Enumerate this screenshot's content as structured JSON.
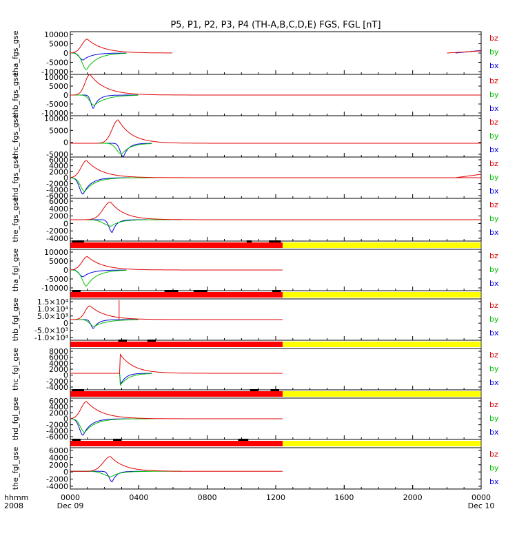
{
  "title": "P5, P1, P2, P3, P4 (TH-A,B,C,D,E) FGS, FGL [nT]",
  "xaxis": {
    "label_line1": "hhmm",
    "label_line2": "2008",
    "ticks": [
      "0000",
      "0400",
      "0800",
      "1200",
      "1600",
      "2000",
      "0000"
    ],
    "tick_hours": [
      0,
      4,
      8,
      12,
      16,
      20,
      24
    ],
    "date_labels": [
      {
        "hour": 0,
        "text": "Dec 09"
      },
      {
        "hour": 24,
        "text": "Dec 10"
      }
    ],
    "range_hours": [
      0,
      24
    ]
  },
  "legend_labels": [
    "bz",
    "by",
    "bx"
  ],
  "colors": {
    "bz": "#e00000",
    "by": "#00c000",
    "bx": "#0000e0",
    "mode_fast": "#ff0000",
    "mode_slow": "#ffff00",
    "purple": "#8000a0"
  },
  "chart_data": [
    {
      "type": "line",
      "ylabel": "tha_fgs_gse",
      "ylim": [
        -10000,
        10000
      ],
      "yticks": [
        "10000",
        "5000",
        "0",
        "-5000",
        "-10000"
      ],
      "series": [
        {
          "name": "bz",
          "peak": 6500,
          "t0": 0,
          "tp": 1.0,
          "tr": 0.45,
          "tf": 0.9,
          "tend": 6.0,
          "base": 0,
          "tail": [
            [
              22.0,
              24.0,
              0,
              1000
            ]
          ]
        },
        {
          "name": "by",
          "peak": -7800,
          "t0": 0.1,
          "tp": 0.95,
          "tr": 0.35,
          "tf": 0.6,
          "tend": 3.3,
          "base": 0
        },
        {
          "name": "bx",
          "peak": -3300,
          "t0": 0.3,
          "tp": 0.75,
          "tr": 0.3,
          "tf": 0.5,
          "tend": 3.3,
          "base": 0,
          "tail": [
            [
              22.5,
              24.0,
              0,
              1200
            ]
          ]
        }
      ]
    },
    {
      "type": "line",
      "ylabel": "thb_fgs_gse",
      "ylim": [
        -10000,
        10000
      ],
      "yticks": [
        "10000",
        "5000",
        "0",
        "-5000",
        "-10000"
      ],
      "series": [
        {
          "name": "bz",
          "peak": 10000,
          "t0": 0.2,
          "tp": 1.15,
          "tr": 0.4,
          "tf": 0.9,
          "tend": 24,
          "base": 0
        },
        {
          "name": "by",
          "peak": -5000,
          "t0": 0.5,
          "tp": 1.4,
          "tr": 0.35,
          "tf": 0.7,
          "tend": 4.0,
          "base": 0
        },
        {
          "name": "bx",
          "peak": -6500,
          "t0": 0.6,
          "tp": 1.35,
          "tr": 0.2,
          "tf": 0.3,
          "tend": 4.0,
          "base": 0
        }
      ]
    },
    {
      "type": "line",
      "ylabel": "thc_fgs_gse",
      "ylim": [
        -5000,
        10000
      ],
      "yticks": [
        "10000",
        "5000",
        "0",
        "-5000"
      ],
      "series": [
        {
          "name": "bz",
          "peak": 8500,
          "t0": 0,
          "tp": 2.8,
          "tr": 0.5,
          "tf": 0.8,
          "tend": 24,
          "base": 0
        },
        {
          "name": "by",
          "peak": -4000,
          "t0": 1.0,
          "tp": 3.0,
          "tr": 0.4,
          "tf": 0.5,
          "tend": 4.8,
          "base": 0
        },
        {
          "name": "bx",
          "peak": -5000,
          "t0": 1.5,
          "tp": 3.1,
          "tr": 0.25,
          "tf": 0.3,
          "tend": 4.8,
          "base": 0
        }
      ]
    },
    {
      "type": "line",
      "ylabel": "thd_fgs_gse",
      "ylim": [
        -6000,
        6000
      ],
      "yticks": [
        "6000",
        "4000",
        "2000",
        "0",
        "-2000",
        "-4000",
        "-6000"
      ],
      "series": [
        {
          "name": "bz",
          "peak": 5000,
          "t0": 0,
          "tp": 0.95,
          "tr": 0.45,
          "tf": 0.9,
          "tend": 24,
          "base": 0,
          "tail": [
            [
              22.5,
              24.0,
              0,
              1000
            ]
          ]
        },
        {
          "name": "by",
          "peak": -4000,
          "t0": 0,
          "tp": 0.85,
          "tr": 0.35,
          "tf": 0.6,
          "tend": 5.0,
          "base": 0,
          "tail": [
            [
              19.3,
              24.0,
              0,
              0
            ]
          ]
        },
        {
          "name": "bx",
          "peak": -4800,
          "t0": 0,
          "tp": 0.75,
          "tr": 0.3,
          "tf": 0.45,
          "tend": 3.5,
          "base": 0
        }
      ]
    },
    {
      "type": "line",
      "ylabel": "the_fgs_gse",
      "ylim": [
        -6000,
        6000
      ],
      "yticks": [
        "6000",
        "4000",
        "2000",
        "0",
        "-2000",
        "-4000"
      ],
      "series": [
        {
          "name": "bz",
          "peak": 5000,
          "t0": 0,
          "tp": 2.35,
          "tr": 0.6,
          "tf": 0.8,
          "tend": 24,
          "base": 0
        },
        {
          "name": "by",
          "peak": -1800,
          "t0": 0,
          "tp": 2.4,
          "tr": 0.6,
          "tf": 0.5,
          "tend": 6.5,
          "base": 0,
          "tail": [
            [
              20.2,
              24.0,
              0,
              0
            ]
          ]
        },
        {
          "name": "bx",
          "peak": -3600,
          "t0": 0,
          "tp": 2.45,
          "tr": 0.25,
          "tf": 0.25,
          "tend": 4.5,
          "base": 0
        }
      ]
    },
    {
      "type": "line",
      "ylabel": "tha_fgl_gse",
      "ylim": [
        -10000,
        10000
      ],
      "yticks": [
        "10000",
        "5000",
        "0",
        "-5000",
        "-10000"
      ],
      "series": [
        {
          "name": "bz",
          "peak": 6500,
          "t0": 0,
          "tp": 1.0,
          "tr": 0.45,
          "tf": 0.9,
          "tend": 12.4,
          "base": 0
        },
        {
          "name": "by",
          "peak": -7800,
          "t0": 0.1,
          "tp": 0.95,
          "tr": 0.35,
          "tf": 0.6,
          "tend": 3.3,
          "base": 0
        },
        {
          "name": "bx",
          "peak": -3300,
          "t0": 0.3,
          "tp": 0.75,
          "tr": 0.3,
          "tf": 0.5,
          "tend": 3.3,
          "base": 0
        }
      ]
    },
    {
      "type": "line",
      "ylabel": "thb_fgl_gse",
      "ylim": [
        -15000,
        15000
      ],
      "yticks": [
        "1.5×10⁴",
        "1.0×10⁴",
        "5.0×10³",
        "0",
        "-5.0×10³",
        "-1.0×10⁴"
      ],
      "series": [
        {
          "name": "bz",
          "peak": 10000,
          "t0": 0.2,
          "tp": 1.15,
          "tr": 0.4,
          "tf": 0.9,
          "tend": 12.4,
          "base": 0
        },
        {
          "name": "by",
          "peak": -5000,
          "t0": 0.5,
          "tp": 1.4,
          "tr": 0.35,
          "tf": 0.7,
          "tend": 4.0,
          "base": 0
        },
        {
          "name": "bx",
          "peak": -6500,
          "t0": 0.6,
          "tp": 1.35,
          "tr": 0.2,
          "tf": 0.3,
          "tend": 4.0,
          "base": 0
        }
      ]
    },
    {
      "type": "line",
      "ylabel": "thc_fgl_gse",
      "ylim": [
        -6000,
        9000
      ],
      "yticks": [
        "8000",
        "6000",
        "4000",
        "2000",
        "0",
        "-2000",
        "-4000"
      ],
      "series": [
        {
          "name": "bz",
          "peak": 7000,
          "t0": 2.9,
          "tp": 2.9,
          "tr": 0.01,
          "tf": 0.8,
          "tend": 12.4,
          "base": 0
        },
        {
          "name": "by",
          "peak": -4500,
          "t0": 2.9,
          "tp": 2.9,
          "tr": 0.01,
          "tf": 0.5,
          "tend": 4.8,
          "base": 0
        },
        {
          "name": "bx",
          "peak": -4000,
          "t0": 2.9,
          "tp": 2.95,
          "tr": 0.05,
          "tf": 0.3,
          "tend": 4.8,
          "base": 0
        }
      ]
    },
    {
      "type": "line",
      "ylabel": "thd_fgl_gse",
      "ylim": [
        -6000,
        6000
      ],
      "yticks": [
        "6000",
        "4000",
        "2000",
        "0",
        "-2000",
        "-4000",
        "-6000"
      ],
      "series": [
        {
          "name": "bz",
          "peak": 5000,
          "t0": 0,
          "tp": 0.95,
          "tr": 0.45,
          "tf": 0.9,
          "tend": 12.4,
          "base": 0
        },
        {
          "name": "by",
          "peak": -4000,
          "t0": 0,
          "tp": 0.85,
          "tr": 0.35,
          "tf": 0.6,
          "tend": 5.0,
          "base": 0
        },
        {
          "name": "bx",
          "peak": -4800,
          "t0": 0,
          "tp": 0.75,
          "tr": 0.3,
          "tf": 0.45,
          "tend": 3.5,
          "base": 0
        }
      ]
    },
    {
      "type": "line",
      "ylabel": "the_fgl_gse",
      "ylim": [
        -6000,
        8000
      ],
      "yticks": [
        "6000",
        "4000",
        "2000",
        "0",
        "-2000",
        "-4000"
      ],
      "series": [
        {
          "name": "bz",
          "peak": 5000,
          "t0": 0,
          "tp": 2.35,
          "tr": 0.6,
          "tf": 0.8,
          "tend": 12.4,
          "base": 0
        },
        {
          "name": "by",
          "peak": -1800,
          "t0": 0,
          "tp": 2.4,
          "tr": 0.6,
          "tf": 0.5,
          "tend": 6.5,
          "base": 0
        },
        {
          "name": "bx",
          "peak": -3600,
          "t0": 0,
          "tp": 2.45,
          "tr": 0.25,
          "tf": 0.25,
          "tend": 4.5,
          "base": 0
        }
      ]
    }
  ],
  "mode_bars": [
    {
      "after_panel": 4,
      "red": [
        0,
        12.4
      ],
      "yellow": [
        12.4,
        24
      ],
      "black": [
        [
          0.1,
          0.8
        ],
        [
          10.3,
          10.6
        ],
        [
          11.6,
          12.3
        ]
      ]
    },
    {
      "after_panel": 5,
      "red": [
        0,
        12.4
      ],
      "yellow": [
        12.4,
        24
      ],
      "black": [
        [
          0.1,
          0.6
        ],
        [
          5.5,
          6.3
        ],
        [
          7.2,
          8.0
        ],
        [
          11.8,
          12.3
        ]
      ]
    },
    {
      "after_panel": 6,
      "red": [
        0,
        12.4
      ],
      "yellow": [
        12.4,
        24
      ],
      "black": [
        [
          2.8,
          3.3
        ],
        [
          4.5,
          5.0
        ]
      ]
    },
    {
      "after_panel": 7,
      "red": [
        0,
        12.4
      ],
      "yellow": [
        12.4,
        24
      ],
      "black": [
        [
          0.1,
          0.8
        ],
        [
          10.5,
          11.0
        ],
        [
          11.7,
          12.2
        ]
      ]
    },
    {
      "after_panel": 8,
      "red": [
        0,
        12.4
      ],
      "yellow": [
        12.4,
        24
      ],
      "black": [
        [
          0.1,
          0.6
        ],
        [
          2.5,
          3.0
        ],
        [
          9.8,
          10.4
        ]
      ]
    }
  ]
}
